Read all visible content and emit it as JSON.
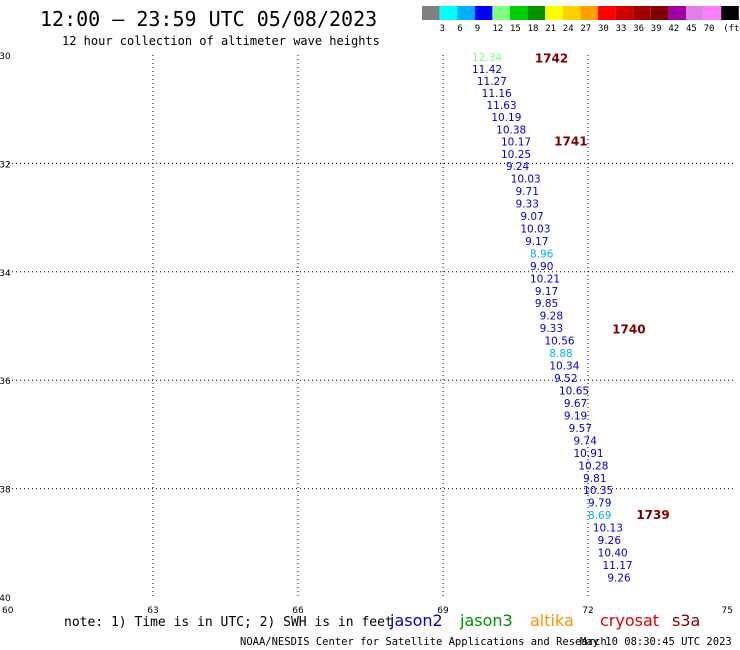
{
  "header": {
    "title": "12:00 – 23:59 UTC 05/08/2023",
    "subtitle": "12 hour collection of altimeter wave heights"
  },
  "legend": {
    "bins": [
      {
        "label": "",
        "color": "#808080"
      },
      {
        "label": "3",
        "color": "#00ffff"
      },
      {
        "label": "6",
        "color": "#00b0ff"
      },
      {
        "label": "9",
        "color": "#0000ff"
      },
      {
        "label": "12",
        "color": "#80ff80"
      },
      {
        "label": "15",
        "color": "#00d000"
      },
      {
        "label": "18",
        "color": "#009000"
      },
      {
        "label": "21",
        "color": "#ffff00"
      },
      {
        "label": "24",
        "color": "#ffd000"
      },
      {
        "label": "27",
        "color": "#ffa000"
      },
      {
        "label": "30",
        "color": "#ff0000"
      },
      {
        "label": "33",
        "color": "#d00000"
      },
      {
        "label": "36",
        "color": "#a00000"
      },
      {
        "label": "39",
        "color": "#800000"
      },
      {
        "label": "42",
        "color": "#a000a0"
      },
      {
        "label": "45",
        "color": "#e080e0"
      },
      {
        "label": "70",
        "color": "#ff80ff"
      },
      {
        "label": "(ft)",
        "color": "#000000"
      }
    ]
  },
  "footer": {
    "note": "note: 1) Time is in UTC; 2) SWH is in feet",
    "satellites": [
      {
        "name": "jason2",
        "color": "#0000cc"
      },
      {
        "name": "jason3",
        "color": "#009000"
      },
      {
        "name": "altika",
        "color": "#ff9000"
      },
      {
        "name": "cryosat",
        "color": "#dd0000"
      },
      {
        "name": "s3a",
        "color": "#880000"
      }
    ],
    "credit": "NOAA/NESDIS Center for Satellite Applications and Research",
    "timestamp": "May 10 08:30:45 UTC 2023"
  },
  "chart_data": {
    "type": "scatter",
    "xlim": [
      60,
      75
    ],
    "ylim": [
      -40,
      -30
    ],
    "x_ticks": [
      "60",
      "63",
      "66",
      "69",
      "72",
      "75"
    ],
    "y_ticks": [
      "-30",
      "-32",
      "-34",
      "-36",
      "-38",
      "-40"
    ],
    "grid": true,
    "points": [
      {
        "lon": 69.6,
        "lat": -30.04,
        "value": "12.34",
        "color": "#80ff80"
      },
      {
        "lon": 69.6,
        "lat": -30.26,
        "value": "11.42",
        "color": "#0000cc"
      },
      {
        "lon": 69.7,
        "lat": -30.48,
        "value": "11.27",
        "color": "#0000cc"
      },
      {
        "lon": 69.8,
        "lat": -30.7,
        "value": "11.16",
        "color": "#0000cc"
      },
      {
        "lon": 69.9,
        "lat": -30.92,
        "value": "11.63",
        "color": "#0000cc"
      },
      {
        "lon": 70.0,
        "lat": -31.14,
        "value": "10.19",
        "color": "#0000cc"
      },
      {
        "lon": 70.1,
        "lat": -31.37,
        "value": "10.38",
        "color": "#0000cc"
      },
      {
        "lon": 70.2,
        "lat": -31.6,
        "value": "10.17",
        "color": "#0000cc"
      },
      {
        "lon": 70.2,
        "lat": -31.83,
        "value": "10.25",
        "color": "#0000cc"
      },
      {
        "lon": 70.3,
        "lat": -32.05,
        "value": "9.24",
        "color": "#0000cc"
      },
      {
        "lon": 70.4,
        "lat": -32.28,
        "value": "10.03",
        "color": "#0000cc"
      },
      {
        "lon": 70.5,
        "lat": -32.51,
        "value": "9.71",
        "color": "#0000cc"
      },
      {
        "lon": 70.5,
        "lat": -32.74,
        "value": "9.33",
        "color": "#0000cc"
      },
      {
        "lon": 70.6,
        "lat": -32.97,
        "value": "9.07",
        "color": "#0000cc"
      },
      {
        "lon": 70.6,
        "lat": -33.2,
        "value": "10.03",
        "color": "#0000cc"
      },
      {
        "lon": 70.7,
        "lat": -33.43,
        "value": "9.17",
        "color": "#0000cc"
      },
      {
        "lon": 70.8,
        "lat": -33.66,
        "value": "8.96",
        "color": "#00b0ff"
      },
      {
        "lon": 70.8,
        "lat": -33.89,
        "value": "9.90",
        "color": "#0000cc"
      },
      {
        "lon": 70.8,
        "lat": -34.12,
        "value": "10.21",
        "color": "#0000cc"
      },
      {
        "lon": 70.9,
        "lat": -34.35,
        "value": "9.17",
        "color": "#0000cc"
      },
      {
        "lon": 70.9,
        "lat": -34.58,
        "value": "9.85",
        "color": "#0000cc"
      },
      {
        "lon": 71.0,
        "lat": -34.81,
        "value": "9.28",
        "color": "#0000cc"
      },
      {
        "lon": 71.0,
        "lat": -35.04,
        "value": "9.33",
        "color": "#0000cc"
      },
      {
        "lon": 71.1,
        "lat": -35.27,
        "value": "10.56",
        "color": "#0000cc"
      },
      {
        "lon": 71.2,
        "lat": -35.5,
        "value": "8.88",
        "color": "#00b0ff"
      },
      {
        "lon": 71.2,
        "lat": -35.73,
        "value": "10.34",
        "color": "#0000cc"
      },
      {
        "lon": 71.3,
        "lat": -35.96,
        "value": "9.52",
        "color": "#0000cc"
      },
      {
        "lon": 71.4,
        "lat": -36.19,
        "value": "10.65",
        "color": "#0000cc"
      },
      {
        "lon": 71.5,
        "lat": -36.42,
        "value": "9.67",
        "color": "#0000cc"
      },
      {
        "lon": 71.5,
        "lat": -36.65,
        "value": "9.19",
        "color": "#0000cc"
      },
      {
        "lon": 71.6,
        "lat": -36.88,
        "value": "9.57",
        "color": "#0000cc"
      },
      {
        "lon": 71.7,
        "lat": -37.11,
        "value": "9.74",
        "color": "#0000cc"
      },
      {
        "lon": 71.7,
        "lat": -37.34,
        "value": "10.91",
        "color": "#0000cc"
      },
      {
        "lon": 71.8,
        "lat": -37.57,
        "value": "10.28",
        "color": "#0000cc"
      },
      {
        "lon": 71.9,
        "lat": -37.8,
        "value": "9.81",
        "color": "#0000cc"
      },
      {
        "lon": 71.9,
        "lat": -38.03,
        "value": "10.35",
        "color": "#0000cc"
      },
      {
        "lon": 72.0,
        "lat": -38.26,
        "value": "9.79",
        "color": "#0000cc"
      },
      {
        "lon": 72.0,
        "lat": -38.49,
        "value": "8.69",
        "color": "#00b0ff"
      },
      {
        "lon": 72.1,
        "lat": -38.72,
        "value": "10.13",
        "color": "#0000cc"
      },
      {
        "lon": 72.2,
        "lat": -38.95,
        "value": "9.26",
        "color": "#0000cc"
      },
      {
        "lon": 72.2,
        "lat": -39.18,
        "value": "10.40",
        "color": "#0000cc"
      },
      {
        "lon": 72.3,
        "lat": -39.41,
        "value": "11.17",
        "color": "#0000cc"
      },
      {
        "lon": 72.4,
        "lat": -39.64,
        "value": "9.26",
        "color": "#0000cc"
      }
    ],
    "time_labels": [
      {
        "lon": 70.9,
        "lat": -30.05,
        "label": "1742"
      },
      {
        "lon": 71.3,
        "lat": -31.58,
        "label": "1741"
      },
      {
        "lon": 72.5,
        "lat": -35.05,
        "label": "1740"
      },
      {
        "lon": 73.0,
        "lat": -38.47,
        "label": "1739"
      }
    ],
    "time_label_color": "#800000"
  }
}
